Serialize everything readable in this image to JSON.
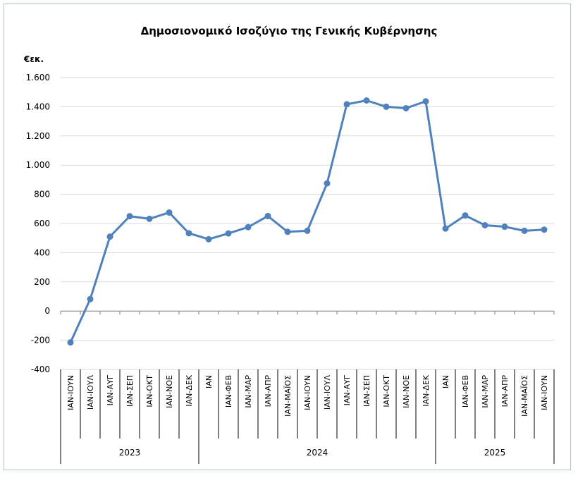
{
  "chart_data": {
    "type": "line",
    "title": "Δημοσιονομικό Ισοζύγιο της Γενικής Κυβέρνησης",
    "ylabel": "€εκ.",
    "xlabel": "",
    "ylim": [
      -400,
      1600
    ],
    "yticks": [
      -400,
      -200,
      0,
      200,
      400,
      600,
      800,
      1000,
      1200,
      1400,
      1600
    ],
    "ytick_labels": [
      "-400",
      "-200",
      "0",
      "200",
      "400",
      "600",
      "800",
      "1.000",
      "1.200",
      "1.400",
      "1.600"
    ],
    "grid": true,
    "legend": "none",
    "line_color": "#4f81bd",
    "grid_color": "#d9d9d9",
    "categories": [
      "ΙΑΝ-ΙΟΥΝ",
      "ΙΑΝ-ΙΟΥΛ",
      "ΙΑΝ-ΑΥΓ",
      "ΙΑΝ-ΣΕΠ",
      "ΙΑΝ-ΟΚΤ",
      "ΙΑΝ-ΝΟΕ",
      "ΙΑΝ-ΔΕΚ",
      "ΙΑΝ",
      "ΙΑΝ-ΦΕΒ",
      "ΙΑΝ-ΜΑΡ",
      "ΙΑΝ-ΑΠΡ",
      "ΙΑΝ-ΜΑΪΟΣ",
      "ΙΑΝ-ΙΟΥΝ",
      "ΙΑΝ-ΙΟΥΛ",
      "ΙΑΝ-ΑΥΓ",
      "ΙΑΝ-ΣΕΠ",
      "ΙΑΝ-ΟΚΤ",
      "ΙΑΝ-ΝΟΕ",
      "ΙΑΝ-ΔΕΚ",
      "ΙΑΝ",
      "ΙΑΝ-ΦΕΒ",
      "ΙΑΝ-ΜΑΡ",
      "ΙΑΝ-ΑΠΡ",
      "ΙΑΝ-ΜΑΪΟΣ",
      "ΙΑΝ-ΙΟΥΝ"
    ],
    "groups": [
      {
        "label": "2023",
        "start": 0,
        "count": 7
      },
      {
        "label": "2024",
        "start": 7,
        "count": 12
      },
      {
        "label": "2025",
        "start": 19,
        "count": 6
      }
    ],
    "series": [
      {
        "values": [
          -215,
          82,
          510,
          650,
          632,
          675,
          533,
          492,
          532,
          575,
          651,
          543,
          550,
          875,
          1417,
          1443,
          1400,
          1390,
          1437,
          565,
          655,
          588,
          578,
          550,
          558
        ]
      }
    ]
  }
}
